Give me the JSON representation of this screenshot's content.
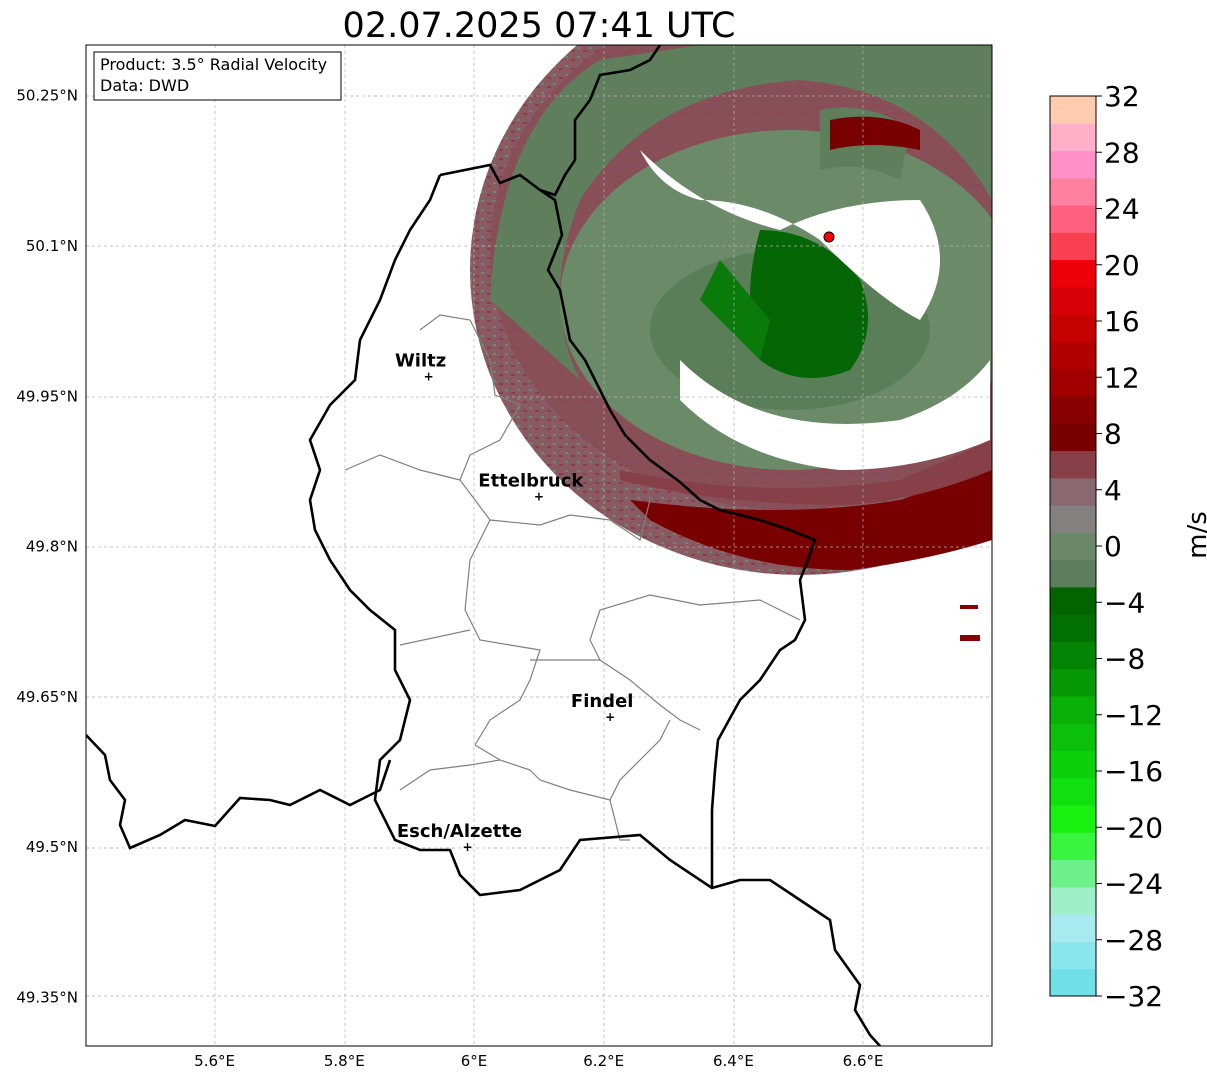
{
  "title": "02.07.2025 07:41 UTC",
  "info_box": {
    "product": "Product: 3.5° Radial Velocity",
    "data": "Data: DWD"
  },
  "lon_ticks": [
    "5.6°E",
    "5.8°E",
    "6°E",
    "6.2°E",
    "6.4°E",
    "6.6°E"
  ],
  "lat_ticks": [
    "50.25°N",
    "50.1°N",
    "49.95°N",
    "49.8°N",
    "49.65°N",
    "49.5°N",
    "49.35°N"
  ],
  "cities": [
    {
      "name": "Wiltz",
      "lon": 5.93,
      "lat": 49.97
    },
    {
      "name": "Ettelbruck",
      "lon": 6.1,
      "lat": 49.85
    },
    {
      "name": "Findel",
      "lon": 6.21,
      "lat": 49.63
    },
    {
      "name": "Esch/Alzette",
      "lon": 5.99,
      "lat": 49.5
    }
  ],
  "radar_site": {
    "lon": 6.55,
    "lat": 50.11,
    "color": "#ff0000"
  },
  "colorbar": {
    "unit": "m/s",
    "min": -32,
    "max": 32,
    "tick_labels": [
      "32",
      "28",
      "24",
      "20",
      "16",
      "12",
      "8",
      "4",
      "0",
      "−4",
      "−8",
      "−12",
      "−16",
      "−20",
      "−24",
      "−28",
      "−32"
    ],
    "colors": [
      "#70e0e8",
      "#8ae8ec",
      "#a8eaf0",
      "#9ff0c8",
      "#6ef08a",
      "#3af540",
      "#18f010",
      "#10e010",
      "#0cd00c",
      "#0ac00a",
      "#08b008",
      "#069806",
      "#048404",
      "#027002",
      "#016401",
      "#5c7e5c",
      "#6a8868",
      "#858080",
      "#8a6870",
      "#884048",
      "#780000",
      "#880000",
      "#a00000",
      "#b00000",
      "#c40000",
      "#d80008",
      "#ee0008",
      "#f84050",
      "#ff6080",
      "#ff80a0",
      "#ff90c8",
      "#ffb0c8",
      "#ffccb0"
    ]
  }
}
